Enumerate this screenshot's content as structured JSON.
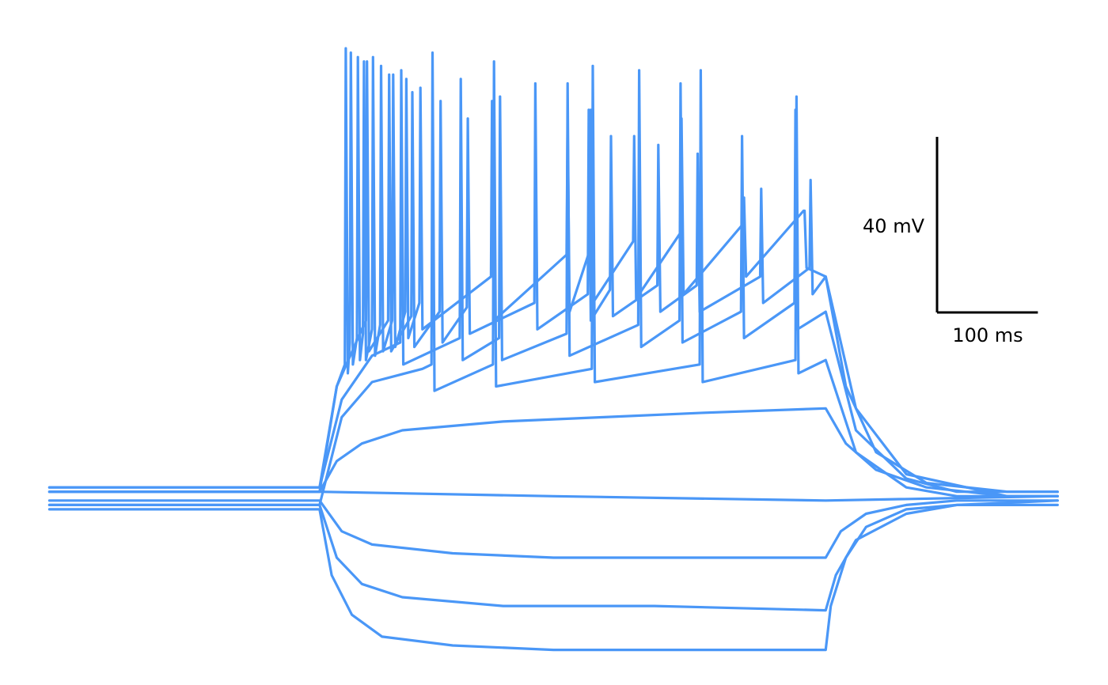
{
  "chart_data": {
    "type": "line",
    "color": "#4a97f7",
    "xlim": [
      -49,
      1050
    ],
    "ylim": [
      -43,
      113
    ],
    "scale_bars": {
      "time": {
        "length": 100,
        "label": "100 ms"
      },
      "voltage": {
        "length": 40,
        "label": "40 mV"
      }
    },
    "series": [
      {
        "x": [
          0,
          268,
          280,
          300,
          330,
          400,
          500,
          600,
          700,
          770,
          775,
          790,
          810,
          850,
          900,
          1000
        ],
        "values": [
          -3,
          -3,
          -18,
          -27,
          -32,
          -34,
          -35,
          -35,
          -35,
          -35,
          -25,
          -14,
          -7,
          -3,
          -2,
          -2
        ]
      },
      {
        "x": [
          0,
          268,
          285,
          310,
          350,
          450,
          600,
          770,
          780,
          800,
          850,
          900,
          1000
        ],
        "values": [
          -2,
          -2,
          -14,
          -20,
          -23,
          -25,
          -25,
          -26,
          -18,
          -10,
          -4,
          -2,
          -1
        ]
      },
      {
        "x": [
          0,
          268,
          290,
          320,
          400,
          500,
          770,
          785,
          810,
          850,
          900,
          1000
        ],
        "values": [
          -1,
          -1,
          -8,
          -11,
          -13,
          -14,
          -14,
          -8,
          -4,
          -2,
          -1,
          -1
        ]
      },
      {
        "x": [
          0,
          268,
          500,
          770,
          1000
        ],
        "values": [
          1,
          1,
          0,
          -1,
          0
        ]
      },
      {
        "x": [
          0,
          268,
          285,
          310,
          350,
          450,
          550,
          650,
          770,
          790,
          820,
          870,
          950,
          1000
        ],
        "values": [
          1,
          1,
          8,
          12,
          15,
          17,
          18,
          19,
          20,
          12,
          6,
          2,
          0,
          0
        ]
      },
      {
        "x": [
          0,
          268,
          290,
          320,
          370,
          379,
          380,
          382,
          440,
          441,
          443,
          538,
          539,
          541,
          645,
          646,
          648,
          740,
          741,
          743,
          770,
          800,
          850,
          900,
          1000
        ],
        "values": [
          -2,
          -2,
          18,
          26,
          29,
          30,
          101,
          24,
          30,
          99,
          25,
          29,
          98,
          26,
          30,
          97,
          26,
          31,
          91,
          28,
          31,
          10,
          2,
          0,
          0
        ]
      },
      {
        "x": [
          0,
          268,
          290,
          320,
          348,
          349,
          351,
          407,
          408,
          410,
          446,
          447,
          449,
          513,
          514,
          516,
          584,
          585,
          587,
          625,
          626,
          628,
          686,
          687,
          689,
          739,
          740,
          742,
          770,
          800,
          850,
          900,
          1000
        ],
        "values": [
          2,
          2,
          22,
          32,
          35,
          97,
          30,
          36,
          95,
          31,
          36,
          91,
          31,
          37,
          94,
          32,
          39,
          97,
          34,
          40,
          94,
          35,
          42,
          82,
          36,
          44,
          88,
          38,
          42,
          15,
          4,
          1,
          1
        ]
      },
      {
        "x": [
          0,
          268,
          285,
          310,
          314,
          315,
          317,
          336,
          337,
          339,
          359,
          360,
          362,
          387,
          388,
          390,
          414,
          415,
          417,
          481,
          482,
          484,
          534,
          535,
          537,
          556,
          557,
          559,
          603,
          604,
          606,
          642,
          643,
          645,
          705,
          706,
          708,
          754,
          755,
          757,
          770,
          800,
          850,
          950,
          1000
        ],
        "values": [
          1,
          1,
          25,
          38,
          40,
          99,
          33,
          40,
          96,
          33,
          41,
          92,
          34,
          42,
          90,
          35,
          43,
          86,
          37,
          44,
          94,
          38,
          46,
          88,
          40,
          47,
          82,
          41,
          48,
          80,
          42,
          48,
          78,
          42,
          50,
          70,
          44,
          52,
          72,
          46,
          50,
          20,
          5,
          0,
          0
        ]
      },
      {
        "x": [
          0,
          268,
          285,
          293,
          294,
          296,
          298,
          299,
          301,
          305,
          306,
          308,
          311,
          312,
          314,
          320,
          321,
          323,
          328,
          329,
          331,
          340,
          341,
          343,
          353,
          354,
          356,
          367,
          368,
          370,
          438,
          439,
          441,
          513,
          514,
          516,
          536,
          537,
          539,
          579,
          580,
          582,
          626,
          627,
          629,
          688,
          689,
          691,
          748,
          749,
          751,
          770,
          790,
          820,
          870,
          950,
          1000
        ],
        "values": [
          2,
          2,
          25,
          30,
          102,
          28,
          35,
          101,
          30,
          36,
          100,
          31,
          37,
          99,
          31,
          38,
          100,
          32,
          39,
          98,
          33,
          40,
          96,
          34,
          42,
          95,
          36,
          44,
          93,
          38,
          50,
          90,
          40,
          55,
          85,
          42,
          56,
          88,
          44,
          58,
          82,
          45,
          60,
          86,
          46,
          62,
          68,
          50,
          65,
          65,
          52,
          50,
          25,
          10,
          3,
          1,
          1
        ]
      }
    ]
  }
}
